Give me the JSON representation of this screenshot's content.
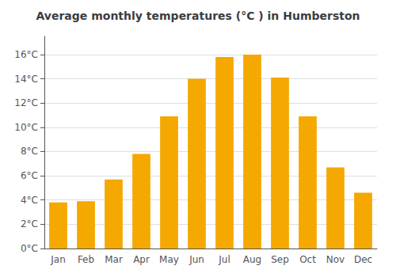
{
  "chart_data": {
    "type": "bar",
    "title": "Average monthly temperatures (°C ) in Humberston",
    "categories": [
      "Jan",
      "Feb",
      "Mar",
      "Apr",
      "May",
      "Jun",
      "Jul",
      "Aug",
      "Sep",
      "Oct",
      "Nov",
      "Dec"
    ],
    "values": [
      3.8,
      3.9,
      5.7,
      7.8,
      10.9,
      14.0,
      15.8,
      16.0,
      14.1,
      10.9,
      6.7,
      4.6
    ],
    "color": "#F5A800",
    "ylim": [
      0,
      17.5
    ],
    "yticks": [
      {
        "value": 0,
        "label": "0°C"
      },
      {
        "value": 2,
        "label": "2°C"
      },
      {
        "value": 4,
        "label": "4°C"
      },
      {
        "value": 6,
        "label": "6°C"
      },
      {
        "value": 8,
        "label": "8°C"
      },
      {
        "value": 10,
        "label": "10°C"
      },
      {
        "value": 12,
        "label": "12°C"
      },
      {
        "value": 14,
        "label": "14°C"
      },
      {
        "value": 16,
        "label": "16°C"
      }
    ],
    "grid": true
  }
}
